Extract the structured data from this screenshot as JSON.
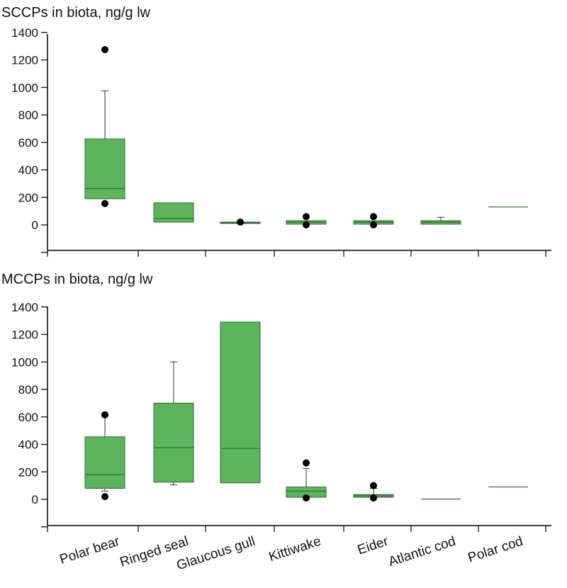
{
  "colors": {
    "box_fill": "#5cb55c",
    "box_stroke": "#2f6b2f",
    "line": "#333333",
    "outlier": "#000000"
  },
  "chart_data": [
    {
      "type": "boxplot",
      "title": "SCCPs in biota, ng/g lw",
      "ylim": [
        -200,
        1400
      ],
      "yticks": [
        0,
        200,
        400,
        600,
        800,
        1000,
        1200,
        1400
      ],
      "categories": [
        "Polar bear",
        "Ringed seal",
        "Glaucous gull",
        "Kittiwake",
        "Eider",
        "Atlantic cod",
        "Polar cod"
      ],
      "boxes": [
        {
          "category": "Polar bear",
          "whisker_low": 190,
          "q1": 190,
          "median": 265,
          "q3": 625,
          "whisker_high": 975,
          "outliers": [
            155,
            1275
          ]
        },
        {
          "category": "Ringed seal",
          "whisker_low": 20,
          "q1": 20,
          "median": 45,
          "q3": 160,
          "whisker_high": 160,
          "outliers": []
        },
        {
          "category": "Glaucous gull",
          "whisker_low": 10,
          "q1": 10,
          "median": 15,
          "q3": 20,
          "whisker_high": 20,
          "outliers": [
            20
          ]
        },
        {
          "category": "Kittiwake",
          "whisker_low": 5,
          "q1": 5,
          "median": 20,
          "q3": 30,
          "whisker_high": 30,
          "outliers": [
            0,
            60
          ]
        },
        {
          "category": "Eider",
          "whisker_low": 5,
          "q1": 5,
          "median": 20,
          "q3": 30,
          "whisker_high": 30,
          "outliers": [
            0,
            60
          ]
        },
        {
          "category": "Atlantic cod",
          "whisker_low": 5,
          "q1": 5,
          "median": 20,
          "q3": 30,
          "whisker_high": 55,
          "outliers": []
        },
        {
          "category": "Polar cod",
          "whisker_low": 130,
          "q1": 130,
          "median": 130,
          "q3": 130,
          "whisker_high": 130,
          "outliers": []
        }
      ]
    },
    {
      "type": "boxplot",
      "title": "MCCPs in biota, ng/g lw",
      "ylim": [
        -200,
        1400
      ],
      "yticks": [
        0,
        200,
        400,
        600,
        800,
        1000,
        1200,
        1400
      ],
      "categories": [
        "Polar bear",
        "Ringed seal",
        "Glaucous gull",
        "Kittiwake",
        "Eider",
        "Atlantic cod",
        "Polar cod"
      ],
      "boxes": [
        {
          "category": "Polar bear",
          "whisker_low": 60,
          "q1": 80,
          "median": 180,
          "q3": 455,
          "whisker_high": 610,
          "outliers": [
            20,
            615
          ]
        },
        {
          "category": "Ringed seal",
          "whisker_low": 105,
          "q1": 125,
          "median": 375,
          "q3": 700,
          "whisker_high": 1000,
          "outliers": []
        },
        {
          "category": "Glaucous gull",
          "whisker_low": 120,
          "q1": 120,
          "median": 370,
          "q3": 1290,
          "whisker_high": 1290,
          "outliers": []
        },
        {
          "category": "Kittiwake",
          "whisker_low": 15,
          "q1": 15,
          "median": 60,
          "q3": 90,
          "whisker_high": 225,
          "outliers": [
            10,
            265
          ]
        },
        {
          "category": "Eider",
          "whisker_low": 15,
          "q1": 15,
          "median": 25,
          "q3": 35,
          "whisker_high": 80,
          "outliers": [
            10,
            100
          ]
        },
        {
          "category": "Atlantic cod",
          "whisker_low": 0,
          "q1": 0,
          "median": 2,
          "q3": 5,
          "whisker_high": 5,
          "outliers": []
        },
        {
          "category": "Polar cod",
          "whisker_low": 90,
          "q1": 90,
          "median": 90,
          "q3": 90,
          "whisker_high": 90,
          "outliers": []
        }
      ]
    }
  ]
}
